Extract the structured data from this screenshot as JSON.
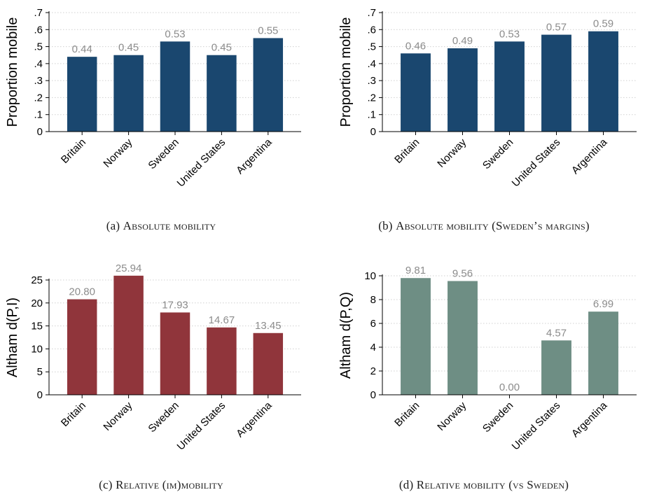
{
  "chart_data": [
    {
      "type": "bar",
      "panel": "a",
      "caption_label": "(a)",
      "caption": "Absolute mobility",
      "ylabel": "Proportion mobile",
      "categories": [
        "Britain",
        "Norway",
        "Sweden",
        "United States",
        "Argentina"
      ],
      "values": [
        0.44,
        0.45,
        0.53,
        0.45,
        0.55
      ],
      "value_labels": [
        "0.44",
        "0.45",
        "0.53",
        "0.45",
        "0.55"
      ],
      "yticks": [
        0,
        0.1,
        0.2,
        0.3,
        0.4,
        0.5,
        0.6,
        0.7
      ],
      "ytick_labels": [
        "0",
        ".1",
        ".2",
        ".3",
        ".4",
        ".5",
        ".6",
        ".7"
      ],
      "ylim": [
        0,
        0.7
      ],
      "grid": true,
      "color": "#1a476f"
    },
    {
      "type": "bar",
      "panel": "b",
      "caption_label": "(b)",
      "caption": "Absolute mobility (Sweden’s margins)",
      "ylabel": "Proportion mobile",
      "categories": [
        "Britain",
        "Norway",
        "Sweden",
        "United States",
        "Argentina"
      ],
      "values": [
        0.46,
        0.49,
        0.53,
        0.57,
        0.59
      ],
      "value_labels": [
        "0.46",
        "0.49",
        "0.53",
        "0.57",
        "0.59"
      ],
      "yticks": [
        0,
        0.1,
        0.2,
        0.3,
        0.4,
        0.5,
        0.6,
        0.7
      ],
      "ytick_labels": [
        "0",
        ".1",
        ".2",
        ".3",
        ".4",
        ".5",
        ".6",
        ".7"
      ],
      "ylim": [
        0,
        0.7
      ],
      "grid": true,
      "color": "#1a476f"
    },
    {
      "type": "bar",
      "panel": "c",
      "caption_label": "(c)",
      "caption": "Relative (im)mobility",
      "ylabel": "Altham d(P,I)",
      "categories": [
        "Britain",
        "Norway",
        "Sweden",
        "United States",
        "Argentina"
      ],
      "values": [
        20.8,
        25.94,
        17.93,
        14.67,
        13.45
      ],
      "value_labels": [
        "20.80",
        "25.94",
        "17.93",
        "14.67",
        "13.45"
      ],
      "yticks": [
        0,
        5,
        10,
        15,
        20,
        25
      ],
      "ytick_labels": [
        "0",
        "5",
        "10",
        "15",
        "20",
        "25"
      ],
      "ylim": [
        0,
        25
      ],
      "grid": true,
      "color": "#90353b"
    },
    {
      "type": "bar",
      "panel": "d",
      "caption_label": "(d)",
      "caption": "Relative mobility (vs Sweden)",
      "ylabel": "Altham d(P,Q)",
      "categories": [
        "Britain",
        "Norway",
        "Sweden",
        "United States",
        "Argentina"
      ],
      "values": [
        9.81,
        9.56,
        0.0,
        4.57,
        6.99
      ],
      "value_labels": [
        "9.81",
        "9.56",
        "0.00",
        "4.57",
        "6.99"
      ],
      "yticks": [
        0,
        2,
        4,
        6,
        8,
        10
      ],
      "ytick_labels": [
        "0",
        "2",
        "4",
        "6",
        "8",
        "10"
      ],
      "ylim": [
        0,
        10
      ],
      "grid": true,
      "color": "#6e8e84"
    }
  ],
  "colors": {
    "value_label": "#8c8c8c",
    "grid": "#d0d0d0",
    "axis": "#000000"
  }
}
